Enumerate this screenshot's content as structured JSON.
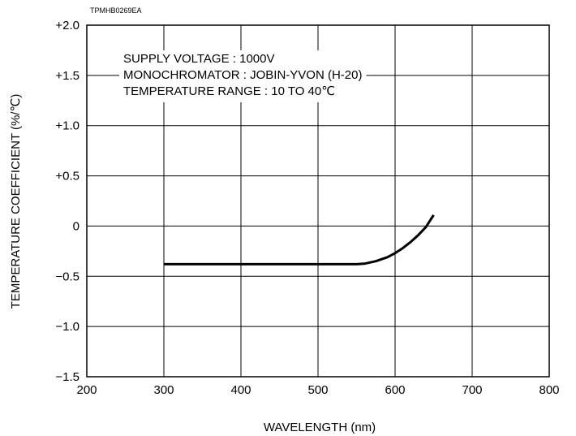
{
  "chart_data": {
    "type": "line",
    "code": "TPMHB0269EA",
    "xlabel": "WAVELENGTH (nm)",
    "ylabel": "TEMPERATURE COEFFICIENT (%/℃)",
    "xlim": [
      200,
      800
    ],
    "ylim": [
      -1.5,
      2.0
    ],
    "x_ticks": [
      200,
      300,
      400,
      500,
      600,
      700,
      800
    ],
    "x_tick_labels": [
      "200",
      "300",
      "400",
      "500",
      "600",
      "700",
      "800"
    ],
    "y_ticks": [
      2.0,
      1.5,
      1.0,
      0.5,
      0,
      -0.5,
      -1.0,
      -1.5
    ],
    "y_tick_labels": [
      "+2.0",
      "+1.5",
      "+1.0",
      "+0.5",
      "0",
      "−0.5",
      "−1.0",
      "−1.5"
    ],
    "grid": true,
    "annotations": [
      "SUPPLY VOLTAGE : 1000V",
      "MONOCHROMATOR : JOBIN-YVON (H-20)",
      "TEMPERATURE RANGE : 10 TO 40℃"
    ],
    "series": [
      {
        "x": [
          300,
          350,
          400,
          450,
          500,
          550,
          560,
          575,
          590,
          600,
          610,
          620,
          630,
          640,
          650
        ],
        "y": [
          -0.38,
          -0.38,
          -0.38,
          -0.38,
          -0.38,
          -0.38,
          -0.375,
          -0.35,
          -0.31,
          -0.27,
          -0.22,
          -0.16,
          -0.09,
          -0.01,
          0.11
        ]
      }
    ]
  }
}
